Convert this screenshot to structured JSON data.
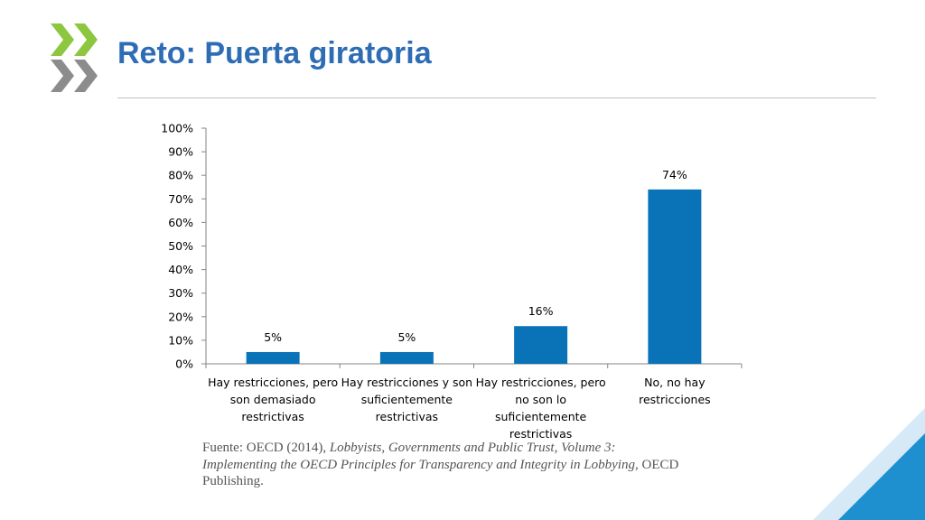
{
  "slide": {
    "title": "Reto: Puerta giratoria",
    "source": {
      "prefix": "Fuente: OECD (2014), ",
      "italic": "Lobbyists, Governments and Public Trust, Volume 3: Implementing the OECD Principles for Transparency and Integrity in Lobbying",
      "suffix": ", OECD Publishing."
    }
  },
  "colors": {
    "title": "#2E6DB4",
    "bar": "#0A73B7",
    "logo_green": "#8DC63F",
    "logo_gray": "#8C8C8C",
    "corner_blue": "#1E90D0"
  },
  "chart_data": {
    "type": "bar",
    "categories": [
      [
        "Hay restricciones, pero",
        "son demasiado",
        "restrictivas"
      ],
      [
        "Hay restricciones y son",
        "suficientemente",
        "restrictivas"
      ],
      [
        "Hay restricciones, pero",
        "no son lo",
        "suficientemente",
        "restrictivas"
      ],
      [
        "No, no hay",
        "restricciones"
      ]
    ],
    "values": [
      5,
      5,
      16,
      74
    ],
    "data_labels": [
      "5%",
      "5%",
      "16%",
      "74%"
    ],
    "ylim": [
      0,
      100
    ],
    "yticks": [
      0,
      10,
      20,
      30,
      40,
      50,
      60,
      70,
      80,
      90,
      100
    ],
    "ytick_labels": [
      "0%",
      "10%",
      "20%",
      "30%",
      "40%",
      "50%",
      "60%",
      "70%",
      "80%",
      "90%",
      "100%"
    ],
    "grid": false,
    "legend": "none"
  }
}
